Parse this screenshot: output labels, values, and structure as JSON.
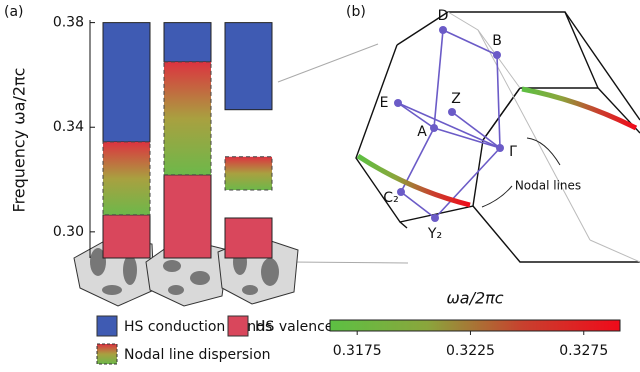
{
  "panel_a_label": "(a)",
  "panel_b_label": "(b)",
  "chart_data": [
    {
      "type": "floating-bar",
      "ylabel": "Frequency ωa/2πc",
      "ylim": [
        0.29,
        0.381
      ],
      "yticks": [
        {
          "value": 0.3,
          "label": "0.30"
        },
        0.34,
        0.38
      ],
      "categories": [
        null,
        null,
        null
      ],
      "series": [
        {
          "name": "HS conduction bands",
          "color": "#3f5bb3",
          "low": [
            0.3344,
            0.365,
            0.3467
          ],
          "high": [
            0.38,
            0.38,
            0.38
          ]
        },
        {
          "name": "HS valence bands",
          "color": "#d9475c",
          "low": [
            0.29,
            0.29,
            0.29
          ],
          "high": [
            0.3065,
            0.3218,
            0.3053
          ]
        },
        {
          "name": "Nodal line dispersion",
          "colors": [
            "#dc3340",
            "#a9a040",
            "#6db84a"
          ],
          "low": [
            0.3065,
            0.3218,
            0.316
          ],
          "high": [
            0.3344,
            0.365,
            0.3287
          ]
        }
      ]
    },
    {
      "type": "colorbar",
      "xlabel": "ωa/2πc",
      "xlim": [
        0.3163,
        0.3291
      ],
      "xticks": [
        0.3175,
        0.3225,
        0.3275
      ],
      "colors": [
        "#5cc043",
        "#8aa63c",
        "#c8402e",
        "#f00a1a"
      ]
    }
  ],
  "diagram": {
    "points": [
      {
        "label": "D"
      },
      {
        "label": "B"
      },
      {
        "label": "E"
      },
      {
        "label": "Z"
      },
      {
        "label": "A"
      },
      {
        "label": "Γ"
      },
      {
        "label": "C₂"
      },
      {
        "label": "Y₂"
      }
    ],
    "annotation": "Nodal lines"
  }
}
